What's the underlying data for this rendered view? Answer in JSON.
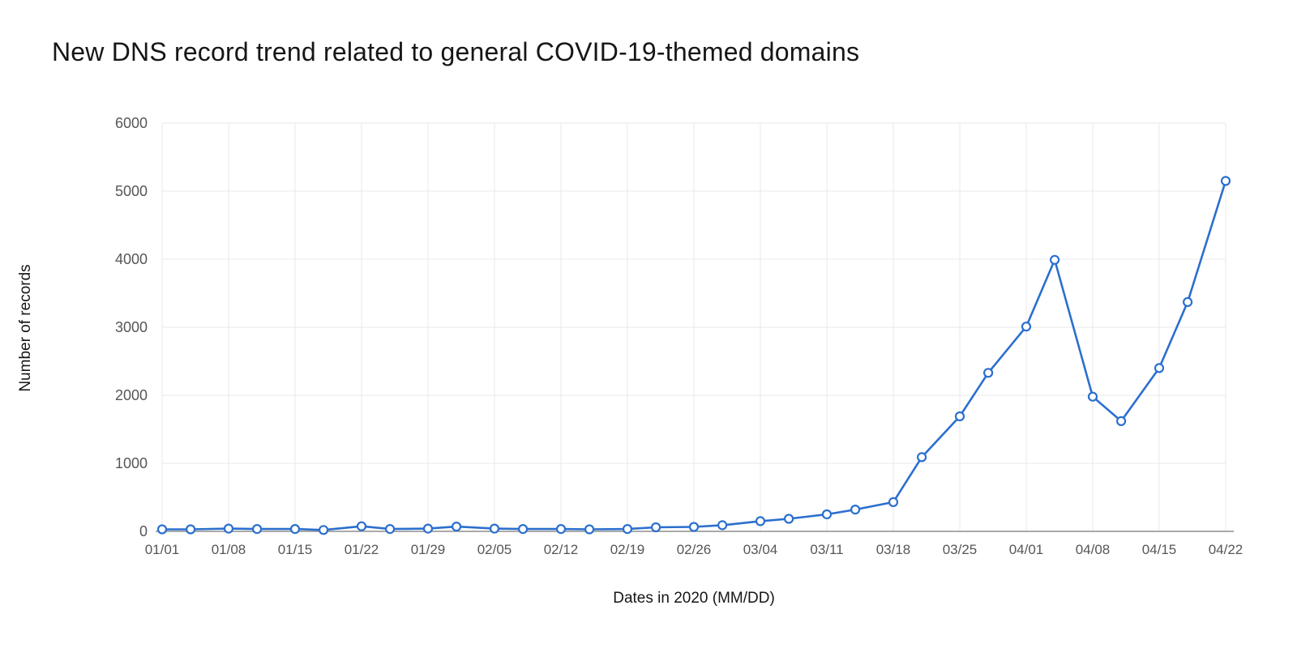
{
  "title": "New DNS record trend related to general COVID-19-themed domains",
  "chart_data": {
    "type": "line",
    "title": "New DNS record trend related to general COVID-19-themed domains",
    "xlabel": "Dates in 2020 (MM/DD)",
    "ylabel": "Number of records",
    "ylim": [
      0,
      6000
    ],
    "y_ticks": [
      0,
      1000,
      2000,
      3000,
      4000,
      5000,
      6000
    ],
    "x_tick_labels": [
      "01/01",
      "01/08",
      "01/15",
      "01/22",
      "01/29",
      "02/05",
      "02/12",
      "02/19",
      "02/26",
      "03/04",
      "03/11",
      "03/18",
      "03/25",
      "04/01",
      "04/08",
      "04/15",
      "04/22"
    ],
    "x": [
      "01/01",
      "01/04",
      "01/08",
      "01/11",
      "01/15",
      "01/18",
      "01/22",
      "01/25",
      "01/29",
      "02/01",
      "02/05",
      "02/08",
      "02/12",
      "02/15",
      "02/19",
      "02/22",
      "02/26",
      "02/29",
      "03/04",
      "03/07",
      "03/11",
      "03/14",
      "03/18",
      "03/21",
      "03/25",
      "03/28",
      "04/01",
      "04/04",
      "04/08",
      "04/11",
      "04/15",
      "04/18",
      "04/22"
    ],
    "values": [
      30,
      30,
      40,
      35,
      35,
      20,
      75,
      35,
      40,
      70,
      40,
      35,
      35,
      30,
      35,
      60,
      65,
      90,
      150,
      185,
      250,
      320,
      430,
      1090,
      1690,
      2330,
      3010,
      3990,
      1980,
      1620,
      2400,
      3370,
      5150
    ],
    "grid": true,
    "legend": "none",
    "marker": "open-circle",
    "line_color": "#2b6fce",
    "marker_fill": "#ffffff",
    "grid_color": "#e8e8e8",
    "axis_line_color": "#8d8d8d",
    "tick_label_color": "#565656",
    "title_color": "#161616"
  }
}
